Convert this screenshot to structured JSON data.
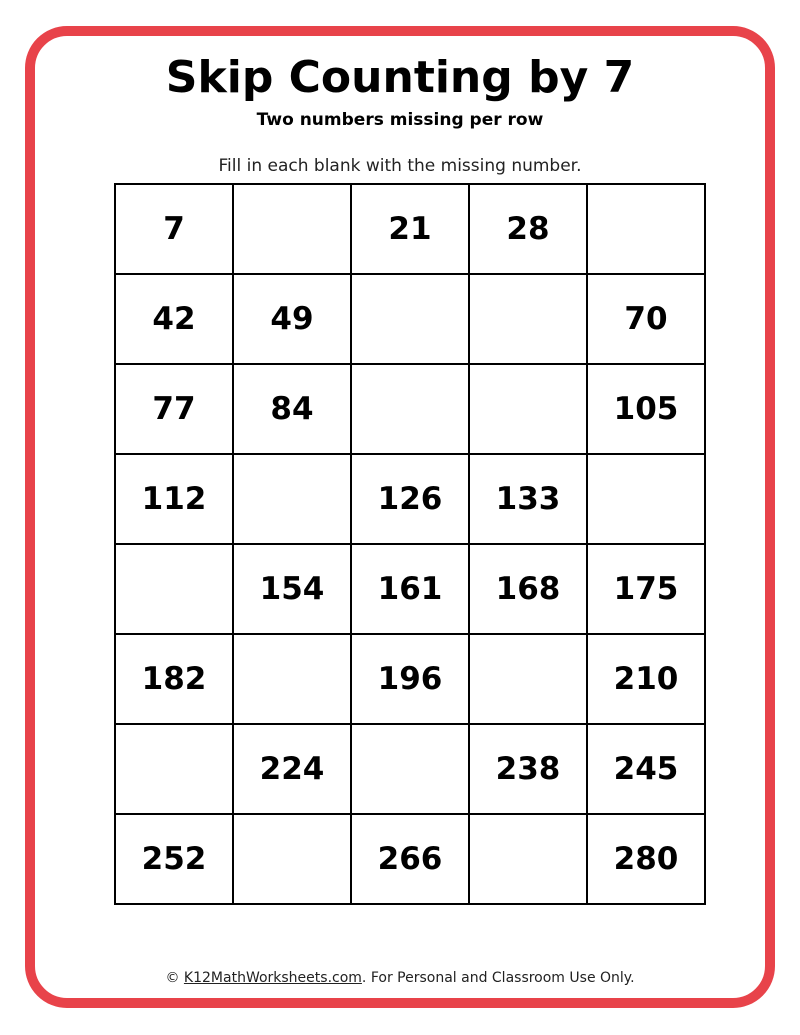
{
  "worksheet": {
    "title": "Skip Counting by 7",
    "subtitle": "Two numbers missing per row",
    "instructions": "Fill in each blank with the missing number.",
    "border_color": "#e8434a",
    "grid": [
      [
        "7",
        "",
        "21",
        "28",
        ""
      ],
      [
        "42",
        "49",
        "",
        "",
        "70"
      ],
      [
        "77",
        "84",
        "",
        "",
        "105"
      ],
      [
        "112",
        "",
        "126",
        "133",
        ""
      ],
      [
        "",
        "154",
        "161",
        "168",
        "175"
      ],
      [
        "182",
        "",
        "196",
        "",
        "210"
      ],
      [
        "",
        "224",
        "",
        "238",
        "245"
      ],
      [
        "252",
        "",
        "266",
        "",
        "280"
      ]
    ]
  },
  "footer": {
    "copyright": "©",
    "link": "K12MathWorksheets.com",
    "text": ". For Personal and Classroom Use Only."
  }
}
